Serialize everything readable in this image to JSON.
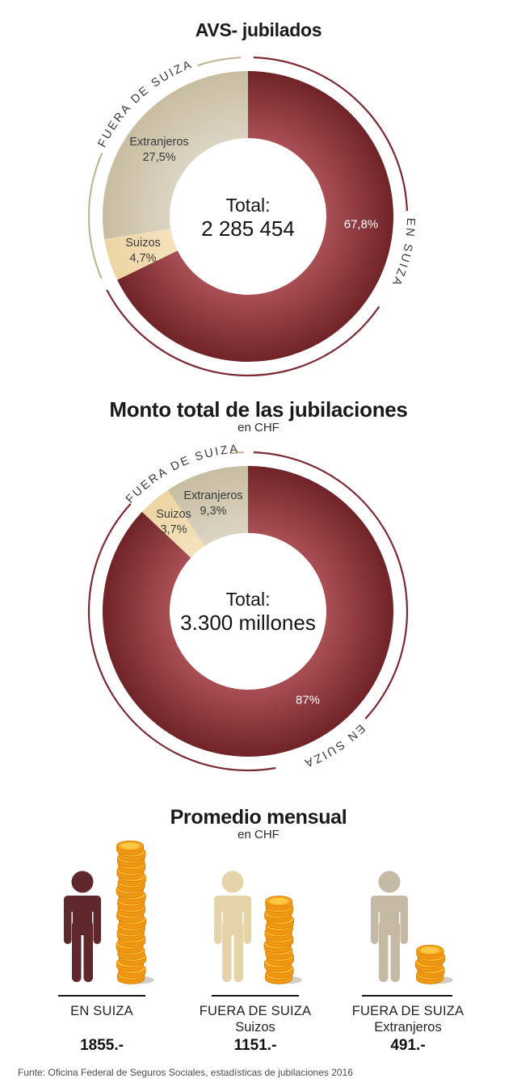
{
  "colors": {
    "background": "#ffffff",
    "arc_red": "#7b2b31",
    "arc_beige": "#c2b695",
    "curved_label_text": "#3b3b3b",
    "coin_side": "#f7a01a",
    "coin_side_dark": "#ef9813",
    "coin_top": "#fdba2e",
    "coin_top_face": "#f7a71f",
    "coin_top_inner": "#ffc844",
    "coin_outline": "#e0820c"
  },
  "chart_data": [
    {
      "type": "pie",
      "variant": "donut",
      "title": "AVS- jubilados",
      "center_label": "Total:",
      "center_value": "2 285 454",
      "segments": [
        {
          "label": "EN SUIZA",
          "pct": 67.8,
          "pct_label": "67,8%",
          "color_inner": "#a94f54",
          "color_outer": "#702428"
        },
        {
          "label": "Suizos",
          "pct": 4.7,
          "pct_label": "4,7%",
          "color_inner": "#f5e2bd",
          "color_outer": "#edd5a2"
        },
        {
          "label": "Extranjeros",
          "pct": 27.5,
          "pct_label": "27,5%",
          "color_inner": "#dcd4c3",
          "color_outer": "#c8bda1"
        }
      ],
      "curved_labels": [
        {
          "text": "EN SUIZA"
        },
        {
          "text": "FUERA DE SUIZA"
        }
      ]
    },
    {
      "type": "pie",
      "variant": "donut",
      "title": "Monto total de las jubilaciones",
      "subtitle": "en CHF",
      "center_label": "Total:",
      "center_value": "3.300 millones",
      "segments": [
        {
          "label": "EN SUIZA",
          "pct": 87,
          "pct_label": "87%",
          "color_inner": "#a94f54",
          "color_outer": "#702428"
        },
        {
          "label": "Suizos",
          "pct": 3.7,
          "pct_label": "3,7%",
          "color_inner": "#f5e2bd",
          "color_outer": "#edd5a2"
        },
        {
          "label": "Extranjeros",
          "pct": 9.3,
          "pct_label": "9,3%",
          "color_inner": "#dcd4c3",
          "color_outer": "#c8bda1"
        }
      ],
      "curved_labels": [
        {
          "text": "EN SUIZA"
        },
        {
          "text": "FUERA DE SUIZA"
        }
      ]
    },
    {
      "type": "bar",
      "variant": "pictogram-coin-stacks",
      "title": "Promedio mensual",
      "subtitle": "en CHF",
      "categories": [
        "EN SUIZA",
        "FUERA DE SUIZA Suizos",
        "FUERA DE SUIZA Extranjeros"
      ],
      "values": [
        1855,
        1151,
        491
      ],
      "columns": [
        {
          "label": "EN SUIZA",
          "sublabel": "",
          "value_label": "1855.-",
          "person_color": "#5e282d",
          "coin_count": 22
        },
        {
          "label": "FUERA DE SUIZA",
          "sublabel": "Suizos",
          "value_label": "1151.-",
          "person_color": "#e5d3a9",
          "coin_count": 13
        },
        {
          "label": "FUERA DE SUIZA",
          "sublabel": "Extranjeros",
          "value_label": "491.-",
          "person_color": "#c4baa3",
          "coin_count": 5
        }
      ]
    }
  ],
  "footer": {
    "source": "Funte: Oficina Federal de Seguros Sociales, estadísticas de jubilaciones 2016"
  }
}
